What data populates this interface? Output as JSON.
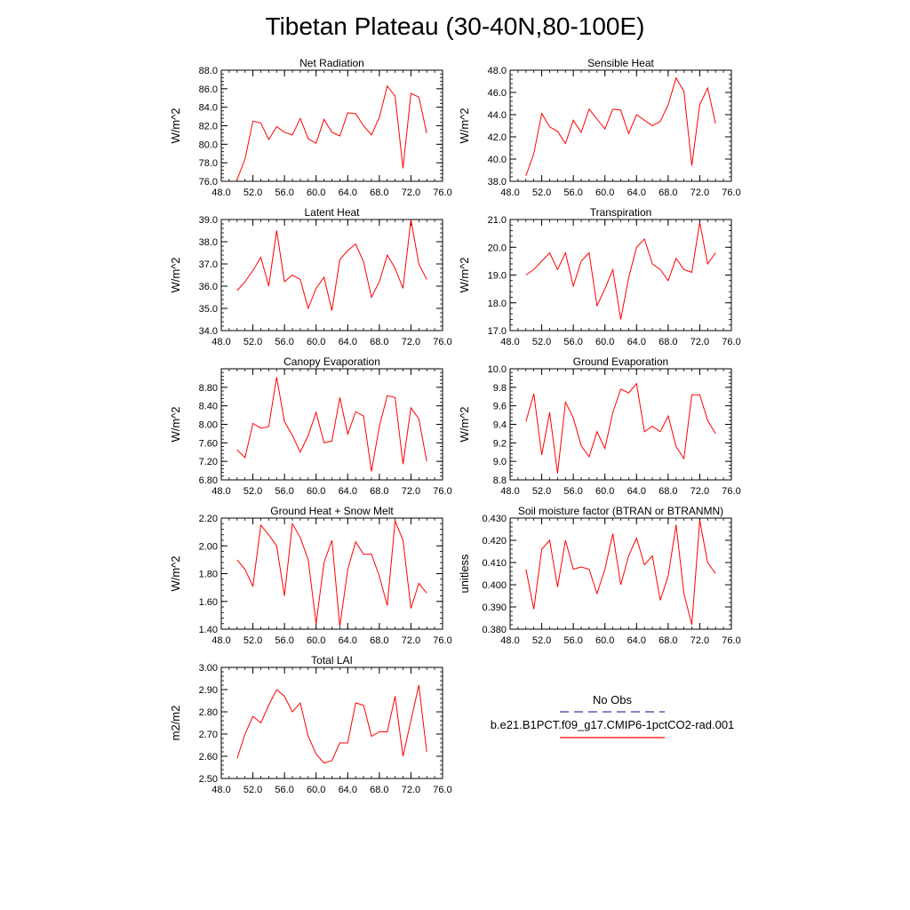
{
  "figure_title": "Tibetan Plateau (30-40N,80-100E)",
  "legend": {
    "obs_label": "No Obs",
    "obs_color": "#3a3aa8",
    "model_label": "b.e21.B1PCT.f09_g17.CMIP6-1pctCO2-rad.001",
    "model_color": "#ff0000"
  },
  "chart_data": [
    {
      "type": "line",
      "title": "Net Radiation",
      "ylabel": "W/m^2",
      "xlim": [
        48,
        76
      ],
      "ylim": [
        76,
        88
      ],
      "xticks": [
        "48.0",
        "52.0",
        "56.0",
        "60.0",
        "64.0",
        "68.0",
        "72.0",
        "76.0"
      ],
      "yticks": [
        "76.0",
        "78.0",
        "80.0",
        "82.0",
        "84.0",
        "86.0",
        "88.0"
      ],
      "x": [
        50,
        51,
        52,
        53,
        54,
        55,
        56,
        57,
        58,
        59,
        60,
        61,
        62,
        63,
        64,
        65,
        66,
        67,
        68,
        69,
        70,
        71,
        72,
        73,
        74
      ],
      "series": [
        {
          "color": "#ff0000",
          "values": [
            76.2,
            78.4,
            82.5,
            82.3,
            80.5,
            81.9,
            81.3,
            81.0,
            82.8,
            80.6,
            80.1,
            82.7,
            81.3,
            80.9,
            83.4,
            83.3,
            82.0,
            81.0,
            82.9,
            86.3,
            85.2,
            77.4,
            85.5,
            85.1,
            81.2
          ]
        }
      ]
    },
    {
      "type": "line",
      "title": "Sensible Heat",
      "ylabel": "W/m^2",
      "xlim": [
        48,
        76
      ],
      "ylim": [
        38,
        48
      ],
      "xticks": [
        "48.0",
        "52.0",
        "56.0",
        "60.0",
        "64.0",
        "68.0",
        "72.0",
        "76.0"
      ],
      "yticks": [
        "38.0",
        "40.0",
        "42.0",
        "44.0",
        "46.0",
        "48.0"
      ],
      "x": [
        50,
        51,
        52,
        53,
        54,
        55,
        56,
        57,
        58,
        59,
        60,
        61,
        62,
        63,
        64,
        65,
        66,
        67,
        68,
        69,
        70,
        71,
        72,
        73,
        74
      ],
      "series": [
        {
          "color": "#ff0000",
          "values": [
            38.5,
            40.5,
            44.1,
            42.9,
            42.5,
            41.4,
            43.5,
            42.4,
            44.5,
            43.6,
            42.7,
            44.5,
            44.4,
            42.3,
            44.0,
            43.5,
            43.0,
            43.4,
            44.9,
            47.3,
            46.1,
            39.4,
            44.9,
            46.4,
            43.2
          ]
        }
      ]
    },
    {
      "type": "line",
      "title": "Latent Heat",
      "ylabel": "W/m^2",
      "xlim": [
        48,
        76
      ],
      "ylim": [
        34,
        39
      ],
      "xticks": [
        "48.0",
        "52.0",
        "56.0",
        "60.0",
        "64.0",
        "68.0",
        "72.0",
        "76.0"
      ],
      "yticks": [
        "34.0",
        "35.0",
        "36.0",
        "37.0",
        "38.0",
        "39.0"
      ],
      "x": [
        50,
        51,
        52,
        53,
        54,
        55,
        56,
        57,
        58,
        59,
        60,
        61,
        62,
        63,
        64,
        65,
        66,
        67,
        68,
        69,
        70,
        71,
        72,
        73,
        74
      ],
      "series": [
        {
          "color": "#ff0000",
          "values": [
            35.8,
            36.2,
            36.7,
            37.3,
            36.0,
            38.5,
            36.2,
            36.5,
            36.3,
            35.0,
            35.9,
            36.4,
            34.9,
            37.2,
            37.6,
            37.9,
            37.1,
            35.5,
            36.2,
            37.4,
            36.8,
            35.9,
            39.0,
            37.0,
            36.3
          ]
        }
      ]
    },
    {
      "type": "line",
      "title": "Transpiration",
      "ylabel": "W/m^2",
      "xlim": [
        48,
        76
      ],
      "ylim": [
        17,
        21
      ],
      "xticks": [
        "48.0",
        "52.0",
        "56.0",
        "60.0",
        "64.0",
        "68.0",
        "72.0",
        "76.0"
      ],
      "yticks": [
        "17.0",
        "18.0",
        "19.0",
        "20.0",
        "21.0"
      ],
      "x": [
        50,
        51,
        52,
        53,
        54,
        55,
        56,
        57,
        58,
        59,
        60,
        61,
        62,
        63,
        64,
        65,
        66,
        67,
        68,
        69,
        70,
        71,
        72,
        73,
        74
      ],
      "series": [
        {
          "color": "#ff0000",
          "values": [
            19.0,
            19.2,
            19.5,
            19.8,
            19.2,
            19.8,
            18.6,
            19.5,
            19.8,
            17.9,
            18.5,
            19.2,
            17.4,
            18.9,
            20.0,
            20.3,
            19.4,
            19.2,
            18.8,
            19.6,
            19.2,
            19.1,
            20.9,
            19.4,
            19.8
          ]
        }
      ]
    },
    {
      "type": "line",
      "title": "Canopy Evaporation",
      "ylabel": "W/m^2",
      "xlim": [
        48,
        76
      ],
      "ylim": [
        6.8,
        9.2
      ],
      "xticks": [
        "48.0",
        "52.0",
        "56.0",
        "60.0",
        "64.0",
        "68.0",
        "72.0",
        "76.0"
      ],
      "yticks": [
        "6.80",
        "7.20",
        "7.60",
        "8.00",
        "8.40",
        "8.80"
      ],
      "x": [
        50,
        51,
        52,
        53,
        54,
        55,
        56,
        57,
        58,
        59,
        60,
        61,
        62,
        63,
        64,
        65,
        66,
        67,
        68,
        69,
        70,
        71,
        72,
        73,
        74
      ],
      "series": [
        {
          "color": "#ff0000",
          "values": [
            7.45,
            7.28,
            8.02,
            7.92,
            7.95,
            9.02,
            8.06,
            7.76,
            7.4,
            7.76,
            8.26,
            7.6,
            7.64,
            8.58,
            7.79,
            8.27,
            8.18,
            6.98,
            7.96,
            8.62,
            8.58,
            7.14,
            8.36,
            8.12,
            7.2
          ]
        }
      ]
    },
    {
      "type": "line",
      "title": "Ground Evaporation",
      "ylabel": "W/m^2",
      "xlim": [
        48,
        76
      ],
      "ylim": [
        8.8,
        10.0
      ],
      "xticks": [
        "48.0",
        "52.0",
        "56.0",
        "60.0",
        "64.0",
        "68.0",
        "72.0",
        "76.0"
      ],
      "yticks": [
        "8.8",
        "9.0",
        "9.2",
        "9.4",
        "9.6",
        "9.8",
        "10.0"
      ],
      "x": [
        50,
        51,
        52,
        53,
        54,
        55,
        56,
        57,
        58,
        59,
        60,
        61,
        62,
        63,
        64,
        65,
        66,
        67,
        68,
        69,
        70,
        71,
        72,
        73,
        74
      ],
      "series": [
        {
          "color": "#ff0000",
          "values": [
            9.43,
            9.73,
            9.07,
            9.53,
            8.87,
            9.64,
            9.47,
            9.17,
            9.05,
            9.32,
            9.14,
            9.53,
            9.78,
            9.74,
            9.84,
            9.32,
            9.38,
            9.32,
            9.49,
            9.16,
            9.03,
            9.72,
            9.72,
            9.44,
            9.3
          ]
        }
      ]
    },
    {
      "type": "line",
      "title": "Ground Heat + Snow Melt",
      "ylabel": "W/m^2",
      "xlim": [
        48,
        76
      ],
      "ylim": [
        1.4,
        2.2
      ],
      "xticks": [
        "48.0",
        "52.0",
        "56.0",
        "60.0",
        "64.0",
        "68.0",
        "72.0",
        "76.0"
      ],
      "yticks": [
        "1.40",
        "1.60",
        "1.80",
        "2.00",
        "2.20"
      ],
      "x": [
        50,
        51,
        52,
        53,
        54,
        55,
        56,
        57,
        58,
        59,
        60,
        61,
        62,
        63,
        64,
        65,
        66,
        67,
        68,
        69,
        70,
        71,
        72,
        73,
        74
      ],
      "series": [
        {
          "color": "#ff0000",
          "values": [
            1.9,
            1.83,
            1.71,
            2.15,
            2.08,
            2.0,
            1.64,
            2.16,
            2.06,
            1.9,
            1.44,
            1.88,
            2.04,
            1.42,
            1.83,
            2.03,
            1.94,
            1.94,
            1.78,
            1.57,
            2.18,
            2.04,
            1.55,
            1.73,
            1.66
          ]
        }
      ]
    },
    {
      "type": "line",
      "title": "Soil moisture factor (BTRAN or BTRANMN)",
      "ylabel": "unitless",
      "xlim": [
        48,
        76
      ],
      "ylim": [
        0.38,
        0.43
      ],
      "xticks": [
        "48.0",
        "52.0",
        "56.0",
        "60.0",
        "64.0",
        "68.0",
        "72.0",
        "76.0"
      ],
      "yticks": [
        "0.380",
        "0.390",
        "0.400",
        "0.410",
        "0.420",
        "0.430"
      ],
      "x": [
        50,
        51,
        52,
        53,
        54,
        55,
        56,
        57,
        58,
        59,
        60,
        61,
        62,
        63,
        64,
        65,
        66,
        67,
        68,
        69,
        70,
        71,
        72,
        73,
        74
      ],
      "series": [
        {
          "color": "#ff0000",
          "values": [
            0.407,
            0.389,
            0.416,
            0.42,
            0.399,
            0.42,
            0.407,
            0.408,
            0.407,
            0.396,
            0.407,
            0.423,
            0.4,
            0.413,
            0.421,
            0.409,
            0.413,
            0.393,
            0.404,
            0.427,
            0.396,
            0.382,
            0.429,
            0.41,
            0.405
          ]
        }
      ]
    },
    {
      "type": "line",
      "title": "Total LAI",
      "ylabel": "m2/m2",
      "xlim": [
        48,
        76
      ],
      "ylim": [
        2.5,
        3.0
      ],
      "xticks": [
        "48.0",
        "52.0",
        "56.0",
        "60.0",
        "64.0",
        "68.0",
        "72.0",
        "76.0"
      ],
      "yticks": [
        "2.50",
        "2.60",
        "2.70",
        "2.80",
        "2.90",
        "3.00"
      ],
      "x": [
        50,
        51,
        52,
        53,
        54,
        55,
        56,
        57,
        58,
        59,
        60,
        61,
        62,
        63,
        64,
        65,
        66,
        67,
        68,
        69,
        70,
        71,
        72,
        73,
        74
      ],
      "series": [
        {
          "color": "#ff0000",
          "values": [
            2.59,
            2.7,
            2.78,
            2.75,
            2.83,
            2.9,
            2.87,
            2.8,
            2.84,
            2.69,
            2.61,
            2.57,
            2.58,
            2.66,
            2.66,
            2.84,
            2.83,
            2.69,
            2.71,
            2.71,
            2.87,
            2.6,
            2.76,
            2.92,
            2.62
          ]
        }
      ]
    }
  ]
}
